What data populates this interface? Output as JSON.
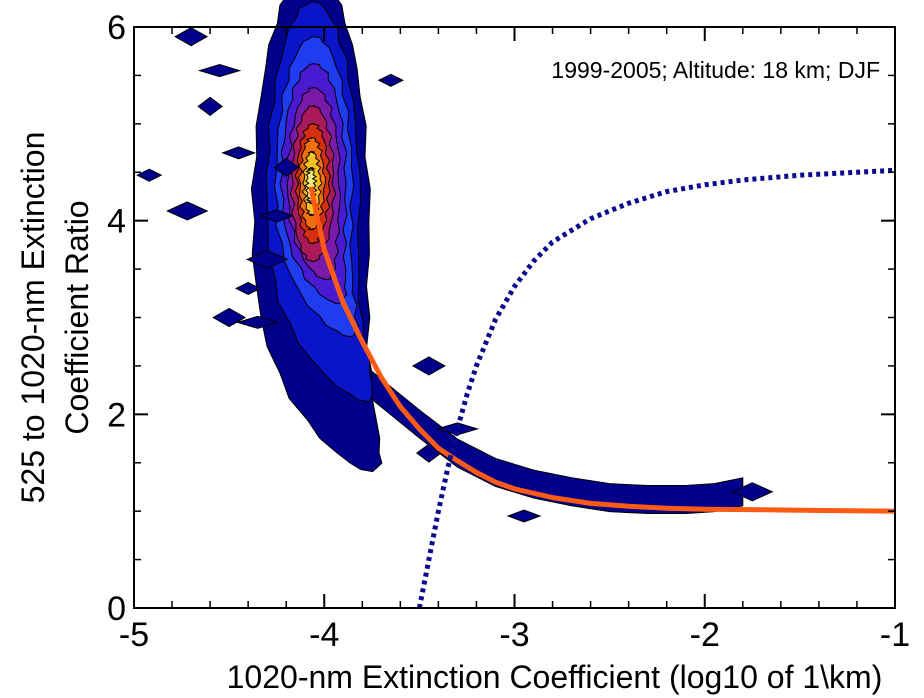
{
  "chart_data": {
    "type": "contour",
    "title": "",
    "annotation": "1999-2005; Altitude: 18 km; DJF",
    "xlabel": "1020-nm Extinction Coefficient (log10 of 1\\km)",
    "ylabel_lines": [
      "525 to 1020-nm Extinction",
      "Coefficient Ratio"
    ],
    "xlim": [
      -5,
      -1
    ],
    "ylim": [
      0,
      6
    ],
    "xticks": [
      -5,
      -4,
      -3,
      -2,
      -1
    ],
    "yticks": [
      0,
      2,
      4,
      6
    ],
    "contour_peak": {
      "x": -4.07,
      "y": 4.3
    },
    "contour_fill_colors": [
      "#00008b",
      "#0a14c8",
      "#1f3cf0",
      "#4a1ad0",
      "#7a1aa8",
      "#aa1a5a",
      "#d43010",
      "#f07010",
      "#f8c020",
      "#f0f080"
    ],
    "series": [
      {
        "style": "solid",
        "color": "#ff5a14",
        "x": [
          -4.07,
          -4.0,
          -3.9,
          -3.8,
          -3.7,
          -3.6,
          -3.5,
          -3.4,
          -3.3,
          -3.2,
          -3.1,
          -3.0,
          -2.8,
          -2.6,
          -2.4,
          -2.2,
          -2.0,
          -1.5,
          -1.0
        ],
        "y": [
          4.35,
          3.7,
          3.15,
          2.75,
          2.38,
          2.08,
          1.85,
          1.65,
          1.52,
          1.4,
          1.3,
          1.23,
          1.14,
          1.08,
          1.05,
          1.03,
          1.02,
          1.01,
          1.0
        ]
      },
      {
        "style": "dotted",
        "color": "#0a0a8c",
        "x": [
          -3.5,
          -3.45,
          -3.4,
          -3.35,
          -3.3,
          -3.25,
          -3.2,
          -3.1,
          -3.0,
          -2.9,
          -2.8,
          -2.6,
          -2.4,
          -2.2,
          -2.0,
          -1.8,
          -1.5,
          -1.2,
          -1.0
        ],
        "y": [
          0.0,
          0.5,
          1.0,
          1.45,
          1.85,
          2.2,
          2.5,
          2.98,
          3.32,
          3.58,
          3.78,
          4.02,
          4.18,
          4.3,
          4.37,
          4.42,
          4.47,
          4.5,
          4.52
        ]
      }
    ]
  }
}
